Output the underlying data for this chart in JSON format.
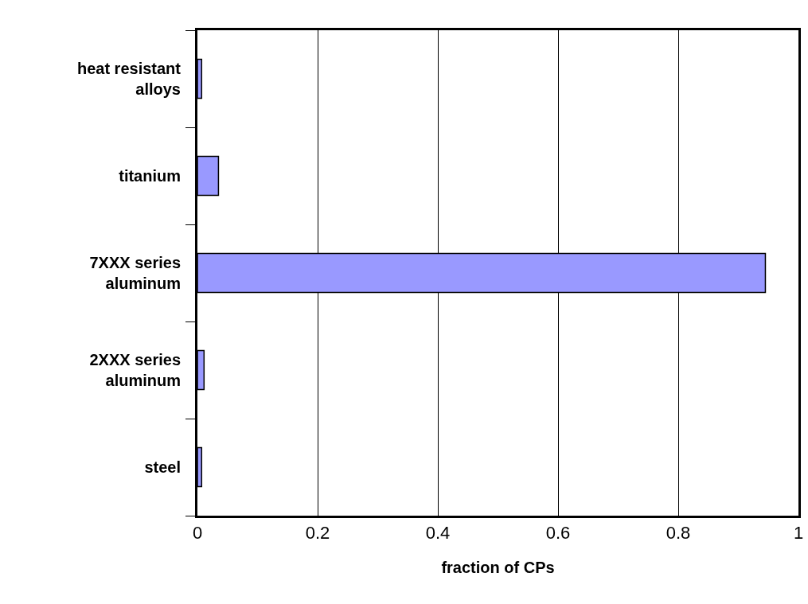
{
  "chart_data": {
    "type": "bar",
    "orientation": "horizontal",
    "xlabel": "fraction of CPs",
    "categories": [
      "heat resistant\nalloys",
      "titanium",
      "7XXX series\naluminum",
      "2XXX series\naluminum",
      "steel"
    ],
    "values": [
      0.007,
      0.035,
      0.945,
      0.011,
      0.007
    ],
    "color": "#9999ff",
    "xlim": [
      0,
      1
    ],
    "xticks": [
      0,
      0.2,
      0.4,
      0.6,
      0.8,
      1
    ],
    "grid": "x"
  }
}
